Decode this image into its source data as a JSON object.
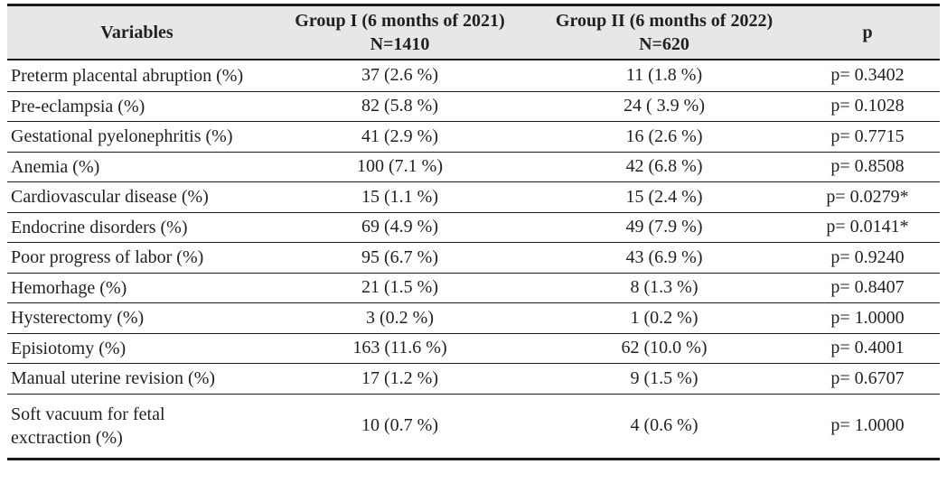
{
  "table": {
    "colors": {
      "header_bg": "#e7e7e7",
      "text": "#231f20",
      "border": "#1b1b1b"
    },
    "header": {
      "variables": "Variables",
      "group1_title": "Group I (6 months of 2021)",
      "group1_n": "N=1410",
      "group2_title": "Group II (6 months of 2022)",
      "group2_n": "N=620",
      "p": "p"
    },
    "rows": [
      {
        "variable": "Preterm placental abruption (%)",
        "group1": "37 (2.6 %)",
        "group2": "11 (1.8 %)",
        "p": "p= 0.3402"
      },
      {
        "variable": "Pre-eclampsia (%)",
        "group1": "82 (5.8 %)",
        "group2": "24 ( 3.9 %)",
        "p": "p= 0.1028"
      },
      {
        "variable": "Gestational pyelonephritis (%)",
        "group1": "41 (2.9 %)",
        "group2": "16 (2.6 %)",
        "p": "p= 0.7715"
      },
      {
        "variable": "Anemia (%)",
        "group1": "100 (7.1 %)",
        "group2": "42 (6.8 %)",
        "p": "p= 0.8508"
      },
      {
        "variable": "Cardiovascular disease (%)",
        "group1": "15 (1.1 %)",
        "group2": "15 (2.4 %)",
        "p": "p= 0.0279*"
      },
      {
        "variable": "Endocrine disorders (%)",
        "group1": "69 (4.9 %)",
        "group2": "49 (7.9 %)",
        "p": "p= 0.0141*"
      },
      {
        "variable": "Poor progress of labor (%)",
        "group1": "95 (6.7 %)",
        "group2": "43 (6.9 %)",
        "p": "p= 0.9240"
      },
      {
        "variable": "Hemorhage (%)",
        "group1": "21 (1.5 %)",
        "group2": "8 (1.3 %)",
        "p": "p= 0.8407"
      },
      {
        "variable": "Hysterectomy (%)",
        "group1": "3 (0.2 %)",
        "group2": "1 (0.2 %)",
        "p": "p= 1.0000"
      },
      {
        "variable": "Episiotomy (%)",
        "group1": "163 (11.6 %)",
        "group2": "62 (10.0 %)",
        "p": "p= 0.4001"
      },
      {
        "variable": "Manual uterine revision (%)",
        "group1": "17 (1.2 %)",
        "group2": "9 (1.5 %)",
        "p": "p= 0.6707"
      },
      {
        "variable": "Soft vacuum for fetal\nexctraction (%)",
        "group1": "10 (0.7 %)",
        "group2": "4 (0.6 %)",
        "p": "p= 1.0000"
      }
    ]
  }
}
